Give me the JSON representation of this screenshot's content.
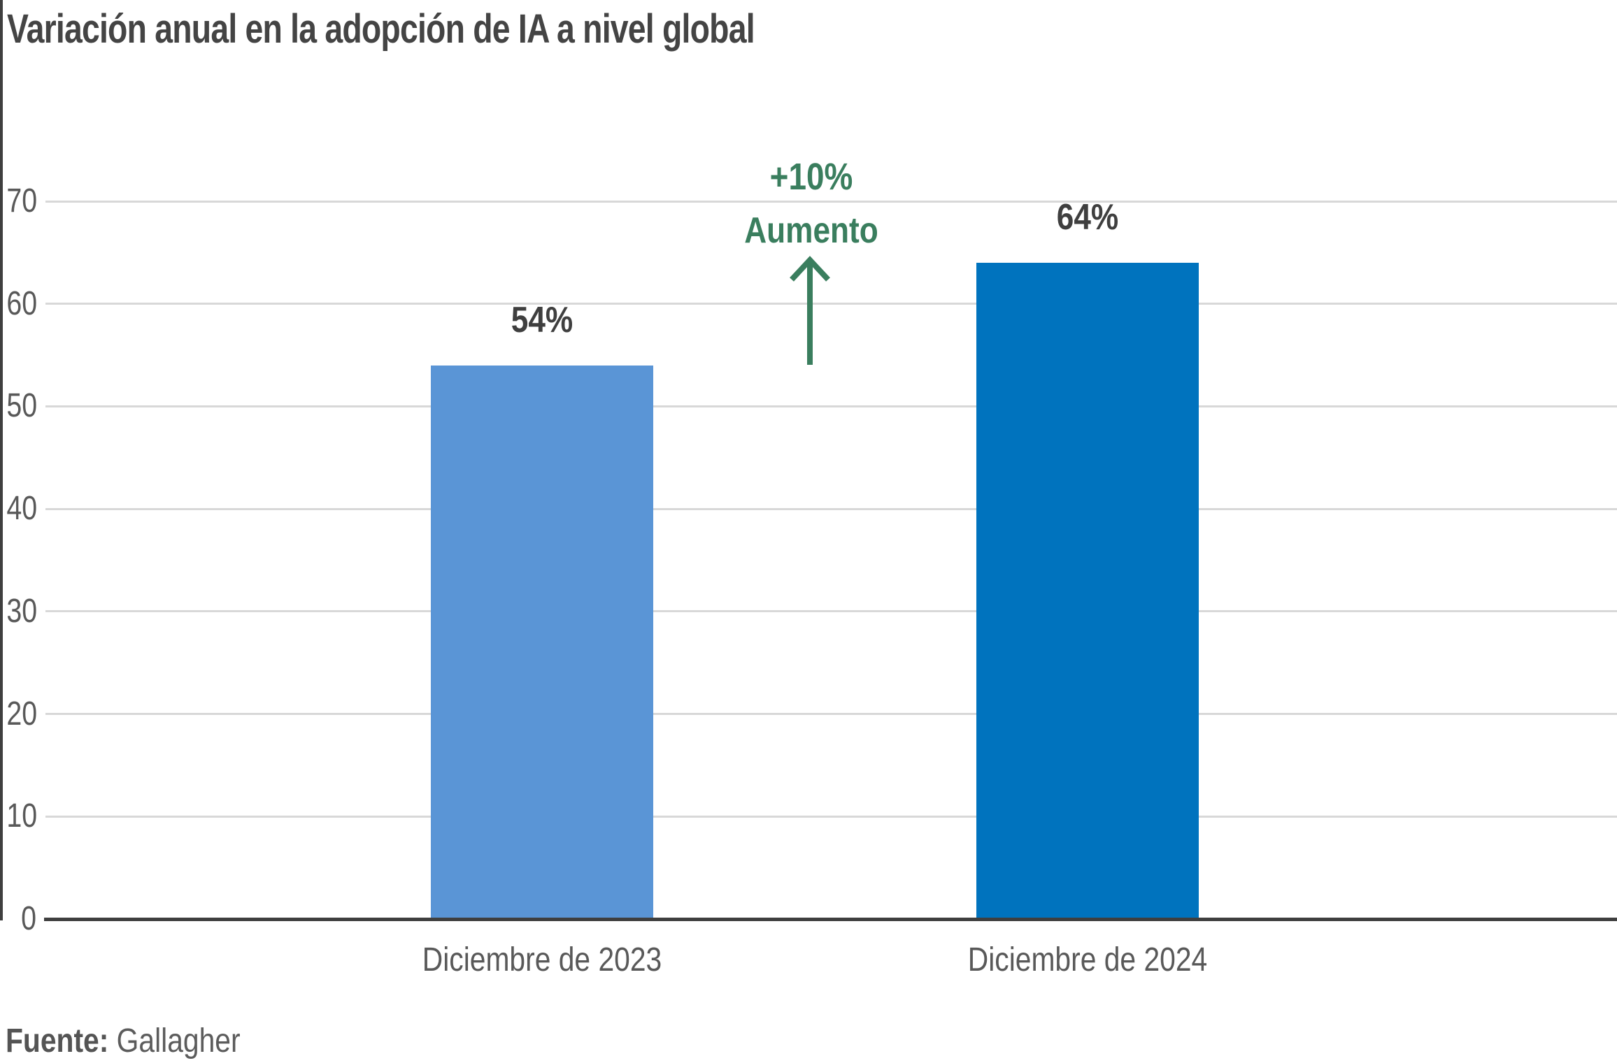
{
  "title": "Variación anual en la adopción de IA a nivel global",
  "annotation": {
    "line1": "+10%",
    "line2": "Aumento",
    "color": "#3A7E5E"
  },
  "source": {
    "label": "Fuente:",
    "value": " Gallagher"
  },
  "chart_data": {
    "type": "bar",
    "title": "Variación anual en la adopción de IA a nivel global",
    "categories": [
      "Diciembre de 2023",
      "Diciembre de 2024"
    ],
    "values": [
      54,
      64
    ],
    "value_labels": [
      "54%",
      "64%"
    ],
    "bar_colors": [
      "#5A95D6",
      "#0073BE"
    ],
    "ylabel": "",
    "xlabel": "",
    "ylim": [
      0,
      70
    ],
    "yticks": [
      0,
      10,
      20,
      30,
      40,
      50,
      60,
      70
    ],
    "grid": true,
    "legend": false,
    "annotation": {
      "text": "+10% Aumento",
      "between_bars": true,
      "color": "#3A7E5E"
    },
    "source": "Fuente: Gallagher"
  }
}
